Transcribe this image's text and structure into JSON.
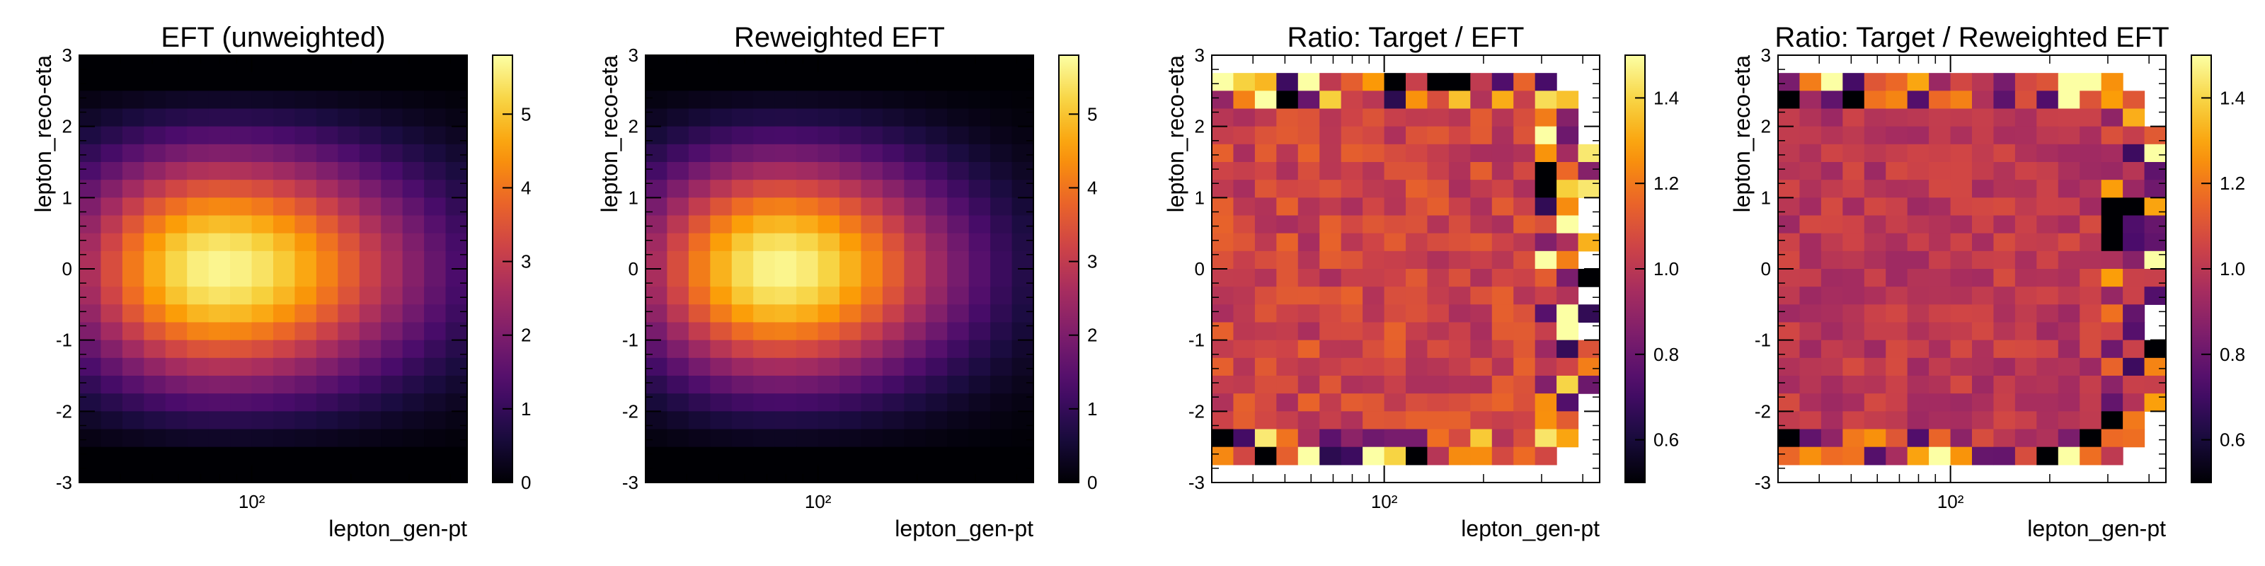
{
  "figure": {
    "panel_count": 4
  },
  "colormap": {
    "name": "inferno",
    "stops": [
      "#000004",
      "#1b0c41",
      "#4a0c6b",
      "#781c6d",
      "#a52c60",
      "#cf4446",
      "#ed6925",
      "#fb9b06",
      "#f7d13d",
      "#fcffa4"
    ]
  },
  "chart_data": [
    {
      "type": "heatmap",
      "title": "EFT (unweighted)",
      "xlabel": "lepton_gen-pt",
      "ylabel": "lepton_reco-eta",
      "x_scale": "log",
      "xlim": [
        30,
        450
      ],
      "ylim": [
        -3,
        3
      ],
      "x_tick_labels": [
        "10²"
      ],
      "y_ticks": [
        -3,
        -2,
        -1,
        0,
        1,
        2,
        3
      ],
      "colorbar_range": [
        0,
        5.8
      ],
      "colorbar_ticks": [
        0,
        1,
        2,
        3,
        4,
        5
      ],
      "grid": false,
      "model": {
        "kind": "gaussian",
        "peak": 5.7,
        "center_log_pt": 1.9,
        "sigma_log_pt": 0.32,
        "tail_log_pt": 0.42,
        "sigma_eta": 1.15,
        "eta_edge": 2.5
      }
    },
    {
      "type": "heatmap",
      "title": "Reweighted EFT",
      "xlabel": "lepton_gen-pt",
      "ylabel": "lepton_reco-eta",
      "x_scale": "log",
      "xlim": [
        30,
        450
      ],
      "ylim": [
        -3,
        3
      ],
      "x_tick_labels": [
        "10²"
      ],
      "y_ticks": [
        -3,
        -2,
        -1,
        0,
        1,
        2,
        3
      ],
      "colorbar_range": [
        0,
        5.8
      ],
      "colorbar_ticks": [
        0,
        1,
        2,
        3,
        4,
        5
      ],
      "grid": false,
      "model": {
        "kind": "gaussian",
        "peak": 5.7,
        "center_log_pt": 1.88,
        "sigma_log_pt": 0.3,
        "tail_log_pt": 0.37,
        "sigma_eta": 1.1,
        "eta_edge": 2.5
      }
    },
    {
      "type": "heatmap",
      "title": "Ratio: Target / EFT",
      "xlabel": "lepton_gen-pt",
      "ylabel": "lepton_reco-eta",
      "x_scale": "log",
      "xlim": [
        30,
        450
      ],
      "ylim": [
        -3,
        3
      ],
      "x_tick_labels": [
        "10²"
      ],
      "y_ticks": [
        -3,
        -2,
        -1,
        0,
        1,
        2,
        3
      ],
      "colorbar_range": [
        0.5,
        1.5
      ],
      "colorbar_ticks": [
        0.6,
        0.8,
        1.0,
        1.2,
        1.4
      ],
      "grid": false,
      "model": {
        "kind": "ratio",
        "base": 1.05,
        "noise": 0.1,
        "seed": 7,
        "mask": "ratio_eft"
      }
    },
    {
      "type": "heatmap",
      "title": "Ratio: Target / Reweighted EFT",
      "xlabel": "lepton_gen-pt",
      "ylabel": "lepton_reco-eta",
      "x_scale": "log",
      "xlim": [
        30,
        450
      ],
      "ylim": [
        -3,
        3
      ],
      "x_tick_labels": [
        "10²"
      ],
      "y_ticks": [
        -3,
        -2,
        -1,
        0,
        1,
        2,
        3
      ],
      "colorbar_range": [
        0.5,
        1.5
      ],
      "colorbar_ticks": [
        0.6,
        0.8,
        1.0,
        1.2,
        1.4
      ],
      "grid": false,
      "model": {
        "kind": "ratio",
        "base": 1.0,
        "noise": 0.08,
        "seed": 19,
        "mask": "ratio_reweighted"
      }
    }
  ]
}
